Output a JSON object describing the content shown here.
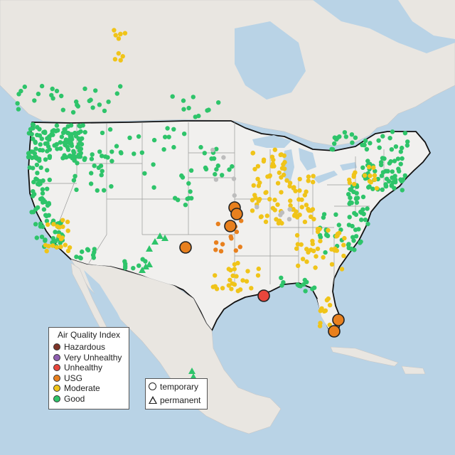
{
  "legend": {
    "title": "Air Quality Index",
    "categories": [
      {
        "label": "Hazardous",
        "color": "#7e3428"
      },
      {
        "label": "Very Unhealthy",
        "color": "#8f5fb0"
      },
      {
        "label": "Unhealthy",
        "color": "#e8463c"
      },
      {
        "label": "USG",
        "color": "#e8801e"
      },
      {
        "label": "Moderate",
        "color": "#f0c419"
      },
      {
        "label": "Good",
        "color": "#2ec46a"
      }
    ]
  },
  "monitor_legend": {
    "temporary_label": "temporary",
    "permanent_label": "permanent"
  },
  "colors": {
    "water": "#b9d3e6",
    "land": "#e9e6e1",
    "us_land": "#f1f0ee",
    "border": "#111111",
    "state_line": "#9a9a9a",
    "no_data": "#bdbdbd"
  }
}
